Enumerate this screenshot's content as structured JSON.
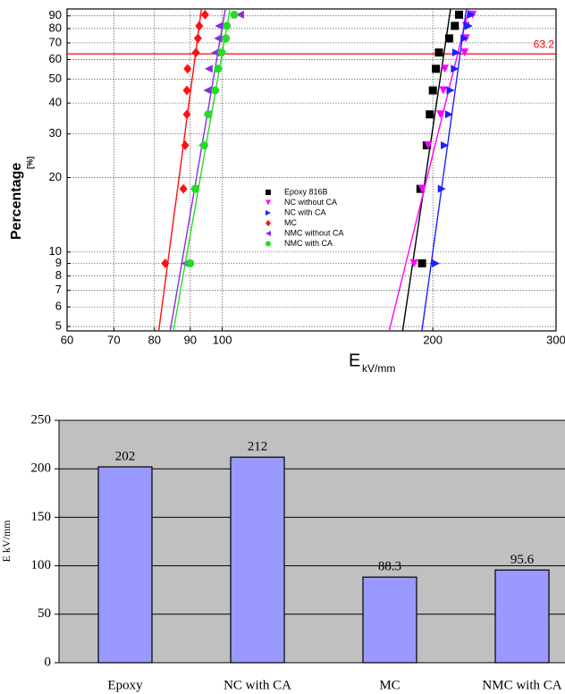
{
  "chart_data": [
    {
      "type": "scatter",
      "y_label": "Percentage",
      "y_label_unit": "[%]",
      "x_label": "E",
      "x_label_unit": "kV/mm",
      "xlim": [
        60,
        300
      ],
      "xticks": [
        60,
        70,
        80,
        90,
        100,
        200,
        300
      ],
      "x_log": true,
      "ylim": [
        4.8,
        96
      ],
      "yticks": [
        5,
        6,
        7,
        8,
        9,
        10,
        20,
        30,
        40,
        50,
        60,
        70,
        80,
        90
      ],
      "y_log": true,
      "grid": true,
      "legend": "center",
      "fit_lines": true,
      "reference_line": 63.2,
      "reference_color": "#ff0000",
      "series": [
        {
          "name": "Epoxy 816B",
          "color": "#000000",
          "marker": "square",
          "x": [
            193,
            192,
            196,
            198,
            200,
            202,
            204,
            211,
            215,
            218
          ],
          "values": [
            9,
            18,
            27,
            36,
            45,
            55,
            64,
            73,
            82,
            91
          ]
        },
        {
          "name": "NC without CA",
          "color": "#ff00ff",
          "marker": "triangle-down",
          "x": [
            188,
            193,
            197,
            205,
            207,
            208,
            222,
            223,
            223,
            228
          ],
          "values": [
            9,
            18,
            27,
            36,
            45,
            55,
            64,
            73,
            82,
            91
          ]
        },
        {
          "name": "NC with CA",
          "color": "#1f1fff",
          "marker": "triangle-right",
          "x": [
            202,
            206,
            208,
            211,
            212,
            215,
            216,
            222,
            225,
            227
          ],
          "values": [
            9,
            18,
            27,
            36,
            45,
            55,
            64,
            73,
            82,
            91
          ]
        },
        {
          "name": "MC",
          "color": "#ff1010",
          "marker": "diamond",
          "x": [
            82.9,
            88.0,
            88.5,
            89.0,
            89.0,
            89.2,
            91.7,
            92.3,
            92.7,
            94.5
          ],
          "values": [
            9,
            18,
            27,
            36,
            45,
            55,
            64,
            73,
            82,
            91
          ]
        },
        {
          "name": "NMC without CA",
          "color": "#8a2be2",
          "marker": "triangle-left",
          "x": [
            88.5,
            91.2,
            93.7,
            95.2,
            95.2,
            95.6,
            97.7,
            98.6,
            98.9,
            106
          ],
          "values": [
            9,
            18,
            27,
            36,
            45,
            55,
            64,
            73,
            82,
            91
          ]
        },
        {
          "name": "NMC with CA",
          "color": "#22dd22",
          "marker": "circle",
          "x": [
            90,
            91.5,
            94.2,
            95.5,
            97.7,
            98.6,
            99.8,
            101.2,
            101.5,
            104
          ],
          "values": [
            9,
            18,
            27,
            36,
            45,
            55,
            64,
            73,
            82,
            91
          ]
        }
      ]
    },
    {
      "type": "bar",
      "y_label": "E kV/mm",
      "categories": [
        "Epoxy",
        "NC with CA",
        "MC",
        "NMC with CA"
      ],
      "values": [
        202,
        212,
        88.3,
        95.6
      ],
      "color": "#9999ff",
      "background": "#c0c0c0",
      "ylim": [
        0,
        250
      ],
      "yticks": [
        0,
        50,
        100,
        150,
        200,
        250
      ],
      "grid": true
    }
  ]
}
